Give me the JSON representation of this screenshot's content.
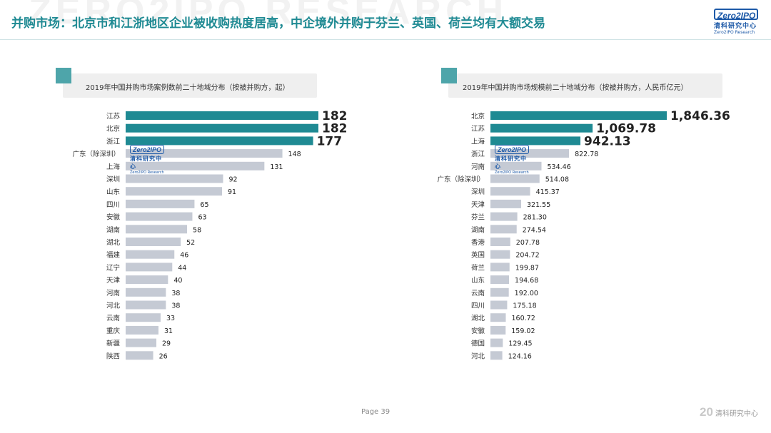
{
  "header": {
    "title": "并购市场：北京市和江浙地区企业被收购热度居高，中企境外并购于芬兰、英国、荷兰均有大额交易",
    "watermark": "ZERO2IPO RESEARCH"
  },
  "logo": {
    "box": "Zero2IPO",
    "cn": "清科研究中心",
    "en": "Zero2IPO Research"
  },
  "stamp": {
    "box": "Zero2IPO",
    "cn": "清科研究中心",
    "en": "Zero2IPO Research"
  },
  "footer": {
    "page": "Page  39",
    "logo_num": "20",
    "logo_cn": "清科研究中心"
  },
  "chart_data": [
    {
      "type": "bar",
      "orientation": "horizontal",
      "title": "2019年中国并购市场案例数前二十地域分布（按被并购方，起）",
      "categories": [
        "江苏",
        "北京",
        "浙江",
        "广东（除深圳）",
        "上海",
        "深圳",
        "山东",
        "四川",
        "安徽",
        "湖南",
        "湖北",
        "福建",
        "辽宁",
        "天津",
        "河南",
        "河北",
        "云南",
        "重庆",
        "新疆",
        "陕西"
      ],
      "values": [
        182,
        182,
        177,
        148,
        131,
        92,
        91,
        65,
        63,
        58,
        52,
        46,
        44,
        40,
        38,
        38,
        33,
        31,
        29,
        26
      ],
      "labels": [
        "182",
        "182",
        "177",
        "148",
        "131",
        "92",
        "91",
        "65",
        "63",
        "58",
        "52",
        "46",
        "44",
        "40",
        "38",
        "38",
        "33",
        "31",
        "29",
        "26"
      ],
      "highlight_count": 3,
      "colors": {
        "highlight": "#1f8a93",
        "normal": "#c5cad4"
      }
    },
    {
      "type": "bar",
      "orientation": "horizontal",
      "title": "2019年中国并购市场规模前二十地域分布（按被并购方，人民币亿元）",
      "categories": [
        "北京",
        "江苏",
        "上海",
        "浙江",
        "河南",
        "广东（除深圳）",
        "深圳",
        "天津",
        "芬兰",
        "湖南",
        "香港",
        "英国",
        "荷兰",
        "山东",
        "云南",
        "四川",
        "湖北",
        "安徽",
        "德国",
        "河北"
      ],
      "values": [
        1846.36,
        1069.78,
        942.13,
        822.78,
        534.46,
        514.08,
        415.37,
        321.55,
        281.3,
        274.54,
        207.78,
        204.72,
        199.87,
        194.68,
        192.0,
        175.18,
        160.72,
        159.02,
        129.45,
        124.16
      ],
      "labels": [
        "1,846.36",
        "1,069.78",
        "942.13",
        "822.78",
        "534.46",
        "514.08",
        "415.37",
        "321.55",
        "281.30",
        "274.54",
        "207.78",
        "204.72",
        "199.87",
        "194.68",
        "192.00",
        "175.18",
        "160.72",
        "159.02",
        "129.45",
        "124.16"
      ],
      "highlight_count": 3,
      "colors": {
        "highlight": "#1f8a93",
        "normal": "#c5cad4"
      }
    }
  ]
}
